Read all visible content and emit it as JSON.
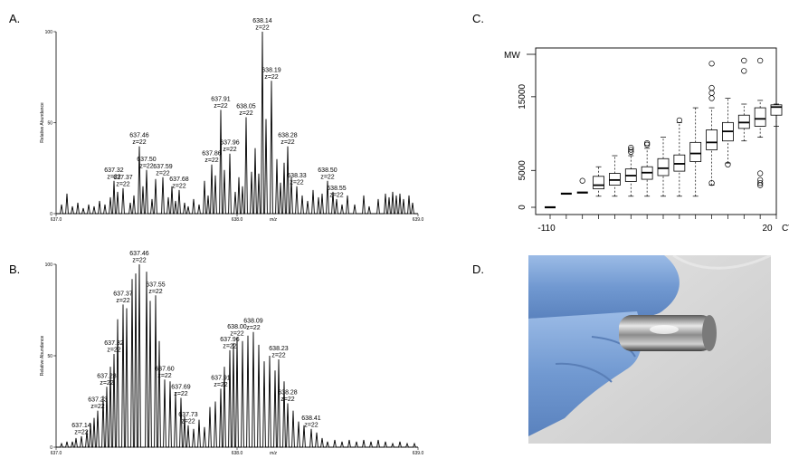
{
  "panels": {
    "a": "A.",
    "b": "B.",
    "c": "C.",
    "d": "D."
  },
  "chart_data": [
    {
      "id": "A",
      "type": "line",
      "title": "",
      "xlabel": "m/z",
      "ylabel": "Relative Abundance",
      "xlim": [
        637.0,
        639.0
      ],
      "ylim": [
        0,
        100
      ],
      "xticks": [
        "637.0",
        "638.0",
        "639.0"
      ],
      "yticks": [
        "0",
        "50",
        "100"
      ],
      "peaks": [
        {
          "x": 637.32,
          "y": 18,
          "label": "637.32",
          "charge": "z=22"
        },
        {
          "x": 637.37,
          "y": 14,
          "label": "637.37",
          "charge": "z=22"
        },
        {
          "x": 637.46,
          "y": 37,
          "label": "637.46",
          "charge": "z=22"
        },
        {
          "x": 637.5,
          "y": 24,
          "label": "637.50",
          "charge": "z=22"
        },
        {
          "x": 637.59,
          "y": 20,
          "label": "637.59",
          "charge": "z=22"
        },
        {
          "x": 637.68,
          "y": 13,
          "label": "637.68",
          "charge": "z=22"
        },
        {
          "x": 637.86,
          "y": 27,
          "label": "637.86",
          "charge": "z=22"
        },
        {
          "x": 637.91,
          "y": 57,
          "label": "637.91",
          "charge": "z=22"
        },
        {
          "x": 637.96,
          "y": 33,
          "label": "637.96",
          "charge": "z=22"
        },
        {
          "x": 638.05,
          "y": 53,
          "label": "638.05",
          "charge": "z=22"
        },
        {
          "x": 638.14,
          "y": 100,
          "label": "638.14",
          "charge": "z=22"
        },
        {
          "x": 638.19,
          "y": 73,
          "label": "638.19",
          "charge": "z=22"
        },
        {
          "x": 638.28,
          "y": 37,
          "label": "638.28",
          "charge": "z=22"
        },
        {
          "x": 638.33,
          "y": 15,
          "label": "638.33",
          "charge": "z=22"
        },
        {
          "x": 638.5,
          "y": 18,
          "label": "638.50",
          "charge": "z=22"
        },
        {
          "x": 638.55,
          "y": 8,
          "label": "638.55",
          "charge": "z=22"
        }
      ],
      "minor_peaks": [
        {
          "x": 637.03,
          "y": 5
        },
        {
          "x": 637.06,
          "y": 11
        },
        {
          "x": 637.09,
          "y": 4
        },
        {
          "x": 637.12,
          "y": 6
        },
        {
          "x": 637.15,
          "y": 3
        },
        {
          "x": 637.18,
          "y": 5
        },
        {
          "x": 637.21,
          "y": 4
        },
        {
          "x": 637.24,
          "y": 7
        },
        {
          "x": 637.27,
          "y": 5
        },
        {
          "x": 637.3,
          "y": 9
        },
        {
          "x": 637.34,
          "y": 12
        },
        {
          "x": 637.41,
          "y": 6
        },
        {
          "x": 637.43,
          "y": 10
        },
        {
          "x": 637.48,
          "y": 15
        },
        {
          "x": 637.53,
          "y": 8
        },
        {
          "x": 637.55,
          "y": 19
        },
        {
          "x": 637.62,
          "y": 9
        },
        {
          "x": 637.64,
          "y": 15
        },
        {
          "x": 637.66,
          "y": 7
        },
        {
          "x": 637.71,
          "y": 6
        },
        {
          "x": 637.73,
          "y": 4
        },
        {
          "x": 637.76,
          "y": 8
        },
        {
          "x": 637.79,
          "y": 5
        },
        {
          "x": 637.82,
          "y": 18
        },
        {
          "x": 637.84,
          "y": 10
        },
        {
          "x": 637.88,
          "y": 21
        },
        {
          "x": 637.93,
          "y": 24
        },
        {
          "x": 637.99,
          "y": 12
        },
        {
          "x": 638.01,
          "y": 20
        },
        {
          "x": 638.03,
          "y": 15
        },
        {
          "x": 638.08,
          "y": 23
        },
        {
          "x": 638.1,
          "y": 36
        },
        {
          "x": 638.12,
          "y": 22
        },
        {
          "x": 638.16,
          "y": 52
        },
        {
          "x": 638.22,
          "y": 30
        },
        {
          "x": 638.24,
          "y": 17
        },
        {
          "x": 638.26,
          "y": 28
        },
        {
          "x": 638.3,
          "y": 20
        },
        {
          "x": 638.36,
          "y": 10
        },
        {
          "x": 638.39,
          "y": 7
        },
        {
          "x": 638.42,
          "y": 13
        },
        {
          "x": 638.45,
          "y": 9
        },
        {
          "x": 638.47,
          "y": 11
        },
        {
          "x": 638.53,
          "y": 12
        },
        {
          "x": 638.58,
          "y": 5
        },
        {
          "x": 638.61,
          "y": 10
        },
        {
          "x": 638.65,
          "y": 5
        },
        {
          "x": 638.7,
          "y": 10
        },
        {
          "x": 638.73,
          "y": 4
        },
        {
          "x": 638.78,
          "y": 8
        },
        {
          "x": 638.82,
          "y": 11
        },
        {
          "x": 638.84,
          "y": 9
        },
        {
          "x": 638.86,
          "y": 12
        },
        {
          "x": 638.88,
          "y": 10
        },
        {
          "x": 638.9,
          "y": 11
        },
        {
          "x": 638.92,
          "y": 8
        },
        {
          "x": 638.95,
          "y": 10
        },
        {
          "x": 638.97,
          "y": 6
        }
      ]
    },
    {
      "id": "B",
      "type": "line",
      "title": "",
      "xlabel": "m/z",
      "ylabel": "Relative Abundance",
      "xlim": [
        637.0,
        639.0
      ],
      "ylim": [
        0,
        100
      ],
      "xticks": [
        "637.0",
        "638.0",
        "639.0"
      ],
      "yticks": [
        "0",
        "50",
        "100"
      ],
      "peaks": [
        {
          "x": 637.14,
          "y": 6,
          "label": "637.14",
          "charge": "z=22"
        },
        {
          "x": 637.23,
          "y": 20,
          "label": "637.23",
          "charge": "z=22"
        },
        {
          "x": 637.28,
          "y": 33,
          "label": "637.28",
          "charge": "z=22"
        },
        {
          "x": 637.32,
          "y": 51,
          "label": "637.32",
          "charge": "z=22"
        },
        {
          "x": 637.37,
          "y": 78,
          "label": "637.37",
          "charge": "z=22"
        },
        {
          "x": 637.46,
          "y": 100,
          "label": "637.46",
          "charge": "z=22"
        },
        {
          "x": 637.55,
          "y": 83,
          "label": "637.55",
          "charge": "z=22"
        },
        {
          "x": 637.6,
          "y": 37,
          "label": "637.60",
          "charge": "z=22"
        },
        {
          "x": 637.69,
          "y": 27,
          "label": "637.69",
          "charge": "z=22"
        },
        {
          "x": 637.73,
          "y": 12,
          "label": "637.73",
          "charge": "z=22"
        },
        {
          "x": 637.91,
          "y": 32,
          "label": "637.91",
          "charge": "z=22"
        },
        {
          "x": 637.96,
          "y": 53,
          "label": "637.96",
          "charge": "z=22"
        },
        {
          "x": 638.0,
          "y": 60,
          "label": "638.00",
          "charge": "z=22"
        },
        {
          "x": 638.09,
          "y": 63,
          "label": "638.09",
          "charge": "z=22"
        },
        {
          "x": 638.23,
          "y": 48,
          "label": "638.23",
          "charge": "z=22"
        },
        {
          "x": 638.28,
          "y": 24,
          "label": "638.28",
          "charge": "z=22"
        },
        {
          "x": 638.41,
          "y": 10,
          "label": "638.41",
          "charge": "z=22"
        }
      ],
      "minor_peaks": [
        {
          "x": 637.03,
          "y": 2
        },
        {
          "x": 637.06,
          "y": 3
        },
        {
          "x": 637.09,
          "y": 3
        },
        {
          "x": 637.11,
          "y": 5
        },
        {
          "x": 637.17,
          "y": 9
        },
        {
          "x": 637.19,
          "y": 13
        },
        {
          "x": 637.21,
          "y": 16
        },
        {
          "x": 637.26,
          "y": 28
        },
        {
          "x": 637.3,
          "y": 44
        },
        {
          "x": 637.34,
          "y": 70
        },
        {
          "x": 637.39,
          "y": 76
        },
        {
          "x": 637.42,
          "y": 92
        },
        {
          "x": 637.44,
          "y": 95
        },
        {
          "x": 637.5,
          "y": 96
        },
        {
          "x": 637.52,
          "y": 80
        },
        {
          "x": 637.57,
          "y": 58
        },
        {
          "x": 637.63,
          "y": 36
        },
        {
          "x": 637.66,
          "y": 30
        },
        {
          "x": 637.71,
          "y": 17
        },
        {
          "x": 637.76,
          "y": 10
        },
        {
          "x": 637.79,
          "y": 15
        },
        {
          "x": 637.82,
          "y": 11
        },
        {
          "x": 637.85,
          "y": 22
        },
        {
          "x": 637.88,
          "y": 25
        },
        {
          "x": 637.93,
          "y": 44
        },
        {
          "x": 637.98,
          "y": 57
        },
        {
          "x": 638.03,
          "y": 58
        },
        {
          "x": 638.06,
          "y": 61
        },
        {
          "x": 638.12,
          "y": 56
        },
        {
          "x": 638.15,
          "y": 47
        },
        {
          "x": 638.18,
          "y": 50
        },
        {
          "x": 638.21,
          "y": 42
        },
        {
          "x": 638.26,
          "y": 36
        },
        {
          "x": 638.31,
          "y": 20
        },
        {
          "x": 638.34,
          "y": 14
        },
        {
          "x": 638.37,
          "y": 12
        },
        {
          "x": 638.44,
          "y": 8
        },
        {
          "x": 638.47,
          "y": 5
        },
        {
          "x": 638.5,
          "y": 3
        },
        {
          "x": 638.54,
          "y": 4
        },
        {
          "x": 638.58,
          "y": 3
        },
        {
          "x": 638.62,
          "y": 4
        },
        {
          "x": 638.66,
          "y": 3
        },
        {
          "x": 638.7,
          "y": 4
        },
        {
          "x": 638.74,
          "y": 3
        },
        {
          "x": 638.78,
          "y": 4
        },
        {
          "x": 638.82,
          "y": 3
        },
        {
          "x": 638.86,
          "y": 2
        },
        {
          "x": 638.9,
          "y": 3
        },
        {
          "x": 638.94,
          "y": 2
        },
        {
          "x": 638.98,
          "y": 2
        }
      ]
    },
    {
      "id": "C",
      "type": "box",
      "title": "",
      "ylabel": "MW",
      "xlabel": "CV",
      "ylim": [
        0,
        20000
      ],
      "yticks": [
        0,
        5000,
        15000
      ],
      "xticks": [
        "-110",
        "20"
      ],
      "boxes": [
        {
          "q1": 0,
          "median": 0,
          "q3": 0,
          "lo": 0,
          "hi": 0,
          "outliers": []
        },
        {
          "q1": 1800,
          "median": 1850,
          "q3": 1900,
          "lo": 1800,
          "hi": 1900,
          "outliers": []
        },
        {
          "q1": 1900,
          "median": 2000,
          "q3": 2100,
          "lo": 1900,
          "hi": 2100,
          "outliers": [
            3600
          ]
        },
        {
          "q1": 2500,
          "median": 3000,
          "q3": 4200,
          "lo": 1500,
          "hi": 5500,
          "outliers": []
        },
        {
          "q1": 3000,
          "median": 3700,
          "q3": 4600,
          "lo": 1500,
          "hi": 7000,
          "outliers": []
        },
        {
          "q1": 3500,
          "median": 4300,
          "q3": 5200,
          "lo": 1500,
          "hi": 7000,
          "outliers": [
            7500,
            7800,
            8100
          ]
        },
        {
          "q1": 3800,
          "median": 4700,
          "q3": 5500,
          "lo": 1500,
          "hi": 8000,
          "outliers": [
            8500,
            8700
          ]
        },
        {
          "q1": 4300,
          "median": 5300,
          "q3": 6600,
          "lo": 1500,
          "hi": 9500,
          "outliers": []
        },
        {
          "q1": 4900,
          "median": 5900,
          "q3": 7100,
          "lo": 1500,
          "hi": 11500,
          "outliers": [
            11800
          ]
        },
        {
          "q1": 6200,
          "median": 7300,
          "q3": 8800,
          "lo": 1500,
          "hi": 13500,
          "outliers": []
        },
        {
          "q1": 7800,
          "median": 8800,
          "q3": 10500,
          "lo": 3000,
          "hi": 13500,
          "outliers": [
            3300,
            14800,
            15500,
            16200,
            19500
          ]
        },
        {
          "q1": 9000,
          "median": 10300,
          "q3": 11500,
          "lo": 6000,
          "hi": 14800,
          "outliers": [
            5800
          ]
        },
        {
          "q1": 10700,
          "median": 11500,
          "q3": 12500,
          "lo": 9000,
          "hi": 14000,
          "outliers": [
            18500,
            19900
          ]
        },
        {
          "q1": 11000,
          "median": 12000,
          "q3": 13500,
          "lo": 9500,
          "hi": 14500,
          "outliers": [
            3000,
            3300,
            3700,
            4600,
            19900
          ]
        },
        {
          "q1": 12500,
          "median": 13600,
          "q3": 13900,
          "lo": 11000,
          "hi": 14000,
          "outliers": []
        }
      ]
    }
  ],
  "photo": {
    "colors": {
      "glove": "#7ba3d6",
      "metal": "#b8b8b8",
      "fabric": "#d7d7d7"
    }
  }
}
